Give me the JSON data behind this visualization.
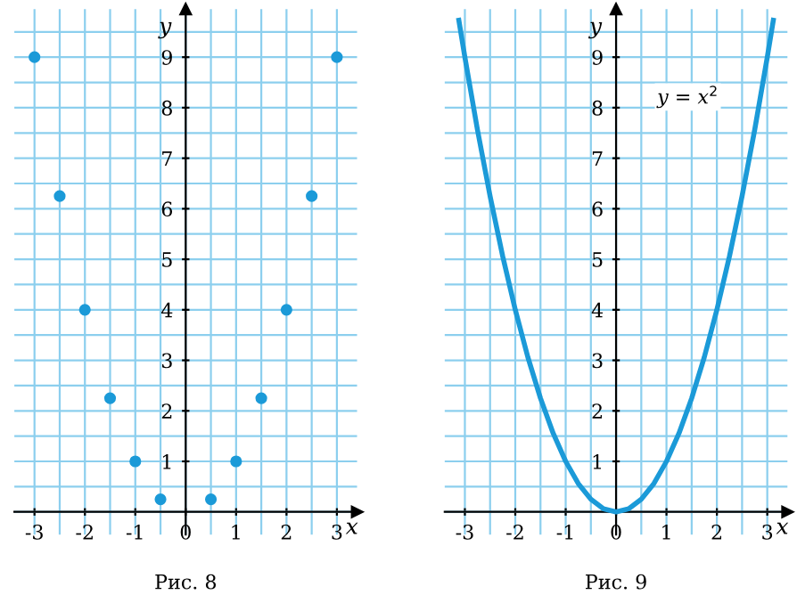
{
  "chart_data": [
    {
      "type": "scatter",
      "xlabel": "x",
      "ylabel": "y",
      "annotations": [
        "Рис. 8"
      ],
      "x": [
        -3,
        -2.5,
        -2,
        -1.5,
        -1,
        -0.5,
        0.5,
        1,
        1.5,
        2,
        2.5,
        3
      ],
      "series": [
        {
          "color": "#1b9ad8",
          "values": [
            9,
            6.25,
            4,
            2.25,
            1,
            0.25,
            0.25,
            1,
            2.25,
            4,
            6.25,
            9
          ]
        }
      ],
      "xlim": [
        -3.4,
        3.4
      ],
      "ylim": [
        -0.45,
        9.95
      ],
      "xticks": [
        -3,
        -2,
        -1,
        0,
        1,
        2,
        3
      ],
      "yticks": [
        1,
        2,
        3,
        4,
        5,
        6,
        7,
        8,
        9
      ],
      "grid": true,
      "marker": "circle"
    },
    {
      "type": "line",
      "xlabel": "x",
      "ylabel": "y",
      "annotations": [
        "y = x$^{2}$",
        "Рис. 9"
      ],
      "x": [
        -3.12,
        -3,
        -2.75,
        -2.5,
        -2.25,
        -2,
        -1.75,
        -1.5,
        -1.25,
        -1,
        -0.75,
        -0.5,
        -0.25,
        0,
        0.25,
        0.5,
        0.75,
        1,
        1.25,
        1.5,
        1.75,
        2,
        2.25,
        2.5,
        2.75,
        3,
        3.12
      ],
      "series": [
        {
          "color": "#1b9ad8",
          "values": [
            9.73,
            9,
            7.56,
            6.25,
            5.06,
            4,
            3.06,
            2.25,
            1.56,
            1,
            0.56,
            0.25,
            0.06,
            0,
            0.06,
            0.25,
            0.56,
            1,
            1.56,
            2.25,
            3.06,
            4,
            5.06,
            6.25,
            7.56,
            9,
            9.73
          ]
        }
      ],
      "xlim": [
        -3.4,
        3.4
      ],
      "ylim": [
        -0.45,
        9.95
      ],
      "xticks": [
        -3,
        -2,
        -1,
        0,
        1,
        2,
        3
      ],
      "yticks": [
        1,
        2,
        3,
        4,
        5,
        6,
        7,
        8,
        9
      ],
      "grid": true,
      "marker": "none",
      "line_style": "solid"
    }
  ]
}
